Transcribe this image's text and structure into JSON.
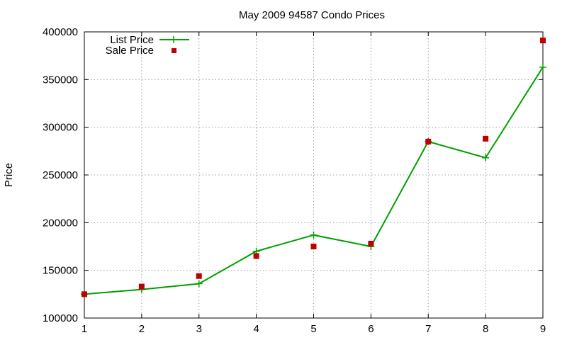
{
  "chart_data": {
    "type": "line",
    "title": "May 2009 94587 Condo Prices",
    "xlabel": "",
    "ylabel": "Price",
    "x": [
      1,
      2,
      3,
      4,
      5,
      6,
      7,
      8,
      9
    ],
    "xlim": [
      1,
      9
    ],
    "ylim": [
      100000,
      400000
    ],
    "x_ticks": [
      "1",
      "2",
      "3",
      "4",
      "5",
      "6",
      "7",
      "8",
      "9"
    ],
    "y_ticks": [
      "100000",
      "150000",
      "200000",
      "250000",
      "300000",
      "350000",
      "400000"
    ],
    "grid": true,
    "legend_position": "top-left",
    "series": [
      {
        "name": "List Price",
        "style": "line-with-plus-markers",
        "color": "#00a000",
        "values": [
          125000,
          130000,
          136000,
          170000,
          187000,
          175000,
          285000,
          268000,
          363000
        ]
      },
      {
        "name": "Sale Price",
        "style": "square-markers",
        "color": "#c00000",
        "values": [
          125000,
          133000,
          144000,
          165000,
          175000,
          178000,
          285000,
          288000,
          391000
        ]
      }
    ]
  }
}
